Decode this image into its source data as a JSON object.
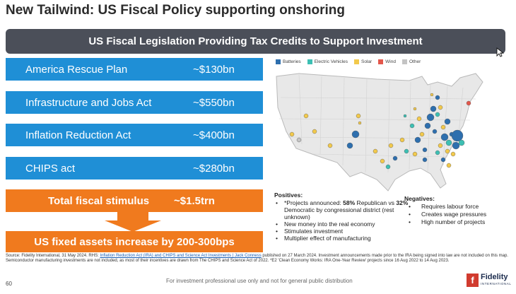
{
  "slide": {
    "title": "New Tailwind: US Fiscal Policy supporting onshoring",
    "banner": "US Fiscal Legislation Providing Tax Credits to Support Investment",
    "page_number": "60",
    "footer": "For investment professional use only and not for general public distribution"
  },
  "programs": [
    {
      "name": "America Rescue Plan",
      "amount": "~$130bn"
    },
    {
      "name": "Infrastructure and Jobs Act",
      "amount": "~$550bn"
    },
    {
      "name": "Inflation Reduction Act",
      "amount": "~$400bn"
    },
    {
      "name": "CHIPS act",
      "amount": "~$280bn"
    }
  ],
  "total": {
    "name": "Total fiscal stimulus",
    "amount": "~$1.5trn"
  },
  "result": "US fixed assets increase by 200-300bps",
  "legend": [
    {
      "label": "Batteries",
      "color": "#2e6fae"
    },
    {
      "label": "Electric Vehicles",
      "color": "#3dbfb3"
    },
    {
      "label": "Solar",
      "color": "#f2c94c"
    },
    {
      "label": "Wind",
      "color": "#e3574b"
    },
    {
      "label": "Other",
      "color": "#c4c4c4"
    }
  ],
  "positives": {
    "heading": "Positives:",
    "items": [
      {
        "pre": "*Projects announced: ",
        "b1": "58%",
        "mid": " Republican vs ",
        "b2": "32%",
        "post": " Democratic by congressional district (rest unknown)"
      },
      {
        "text": "New money into the real economy"
      },
      {
        "text": "Stimulates investment"
      },
      {
        "text": "Multiplier effect of manufacturing"
      }
    ]
  },
  "negatives": {
    "heading": "Negatives:",
    "items": [
      "Requires labour force",
      "Creates wage pressures",
      "High number of projects"
    ]
  },
  "source": {
    "pre": "Source: Fidelity International, 31 May 2024. RHS: ",
    "link": "Inflation Reduction Act (IRA) and CHIPS and Science Act Investments | Jack Conness",
    "post": " published on 27 March 2024. Investment announcements made prior to the IRA being signed into law are not included on this map. Semiconductor manufacturing investments are not included, as most of their incentives are drawn from The CHIPS and Science Act of 2022. *E2 'Clean Economy Works: IRA One-Year Review' projects since 16 Aug 2022 to 14 Aug 2023."
  },
  "logo": {
    "mark": "f",
    "brand": "Fidelity",
    "sub": "INTERNATIONAL"
  }
}
